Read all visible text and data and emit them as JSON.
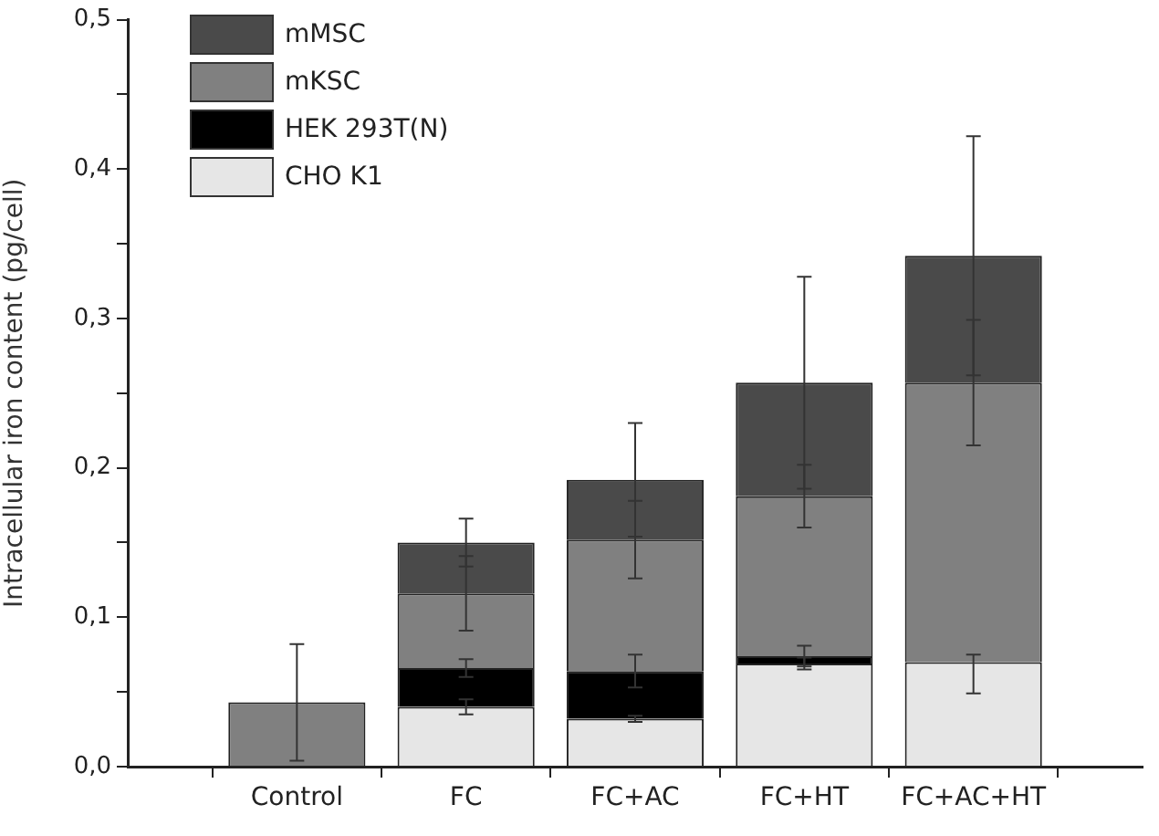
{
  "chart_data": {
    "type": "bar",
    "stacked": true,
    "ylabel": "Intracellular iron content (pg/cell)",
    "categories": [
      "Control",
      "FC",
      "FC+AC",
      "FC+HT",
      "FC+AC+HT"
    ],
    "series": [
      {
        "name": "CHO K1",
        "color": "#e6e6e6",
        "values": [
          0,
          0.04,
          0.032,
          0.069,
          0.07
        ],
        "errors": [
          null,
          0.005,
          0.002,
          0.004,
          [
            0.049,
            0.075
          ]
        ]
      },
      {
        "name": "HEK 293T(N)",
        "color": "#000000",
        "values": [
          0,
          0.026,
          0.032,
          0.005,
          null
        ],
        "errors": [
          null,
          0.006,
          0.011,
          0.007,
          null
        ]
      },
      {
        "name": "mKSC",
        "color": "#808080",
        "values": [
          0.043,
          0.05,
          0.088,
          0.107,
          0.187
        ],
        "errors": [
          0.039,
          0.025,
          0.026,
          0.021,
          0.042
        ]
      },
      {
        "name": "mMSC",
        "color": "#4a4a4a",
        "values": [
          0,
          0.034,
          0.04,
          0.076,
          0.085
        ],
        "errors": [
          null,
          0.016,
          0.038,
          0.071,
          0.08
        ]
      }
    ],
    "ylim": [
      0,
      0.5
    ],
    "yticks": [
      {
        "value": 0,
        "label": "0,0"
      },
      {
        "value": 0.05,
        "label": null
      },
      {
        "value": 0.1,
        "label": "0,1"
      },
      {
        "value": 0.15,
        "label": null
      },
      {
        "value": 0.2,
        "label": "0,2"
      },
      {
        "value": 0.25,
        "label": null
      },
      {
        "value": 0.3,
        "label": "0,3"
      },
      {
        "value": 0.35,
        "label": null
      },
      {
        "value": 0.4,
        "label": "0,4"
      },
      {
        "value": 0.45,
        "label": null
      },
      {
        "value": 0.5,
        "label": "0,5"
      }
    ],
    "grid": false,
    "legend": "top left"
  }
}
